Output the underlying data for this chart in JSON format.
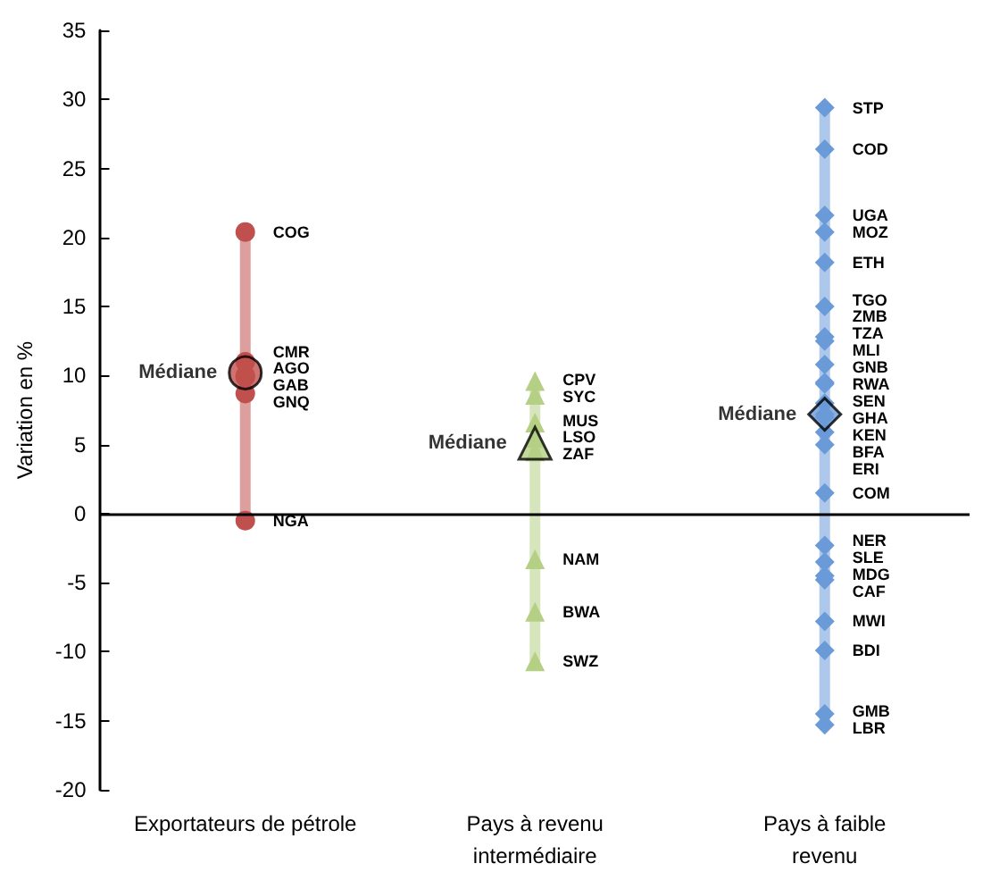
{
  "chart_data": {
    "type": "line",
    "ylabel": "Variation en %",
    "categories": [
      "Exportateurs de pétrole",
      "Pays à revenu\nintermédiaire",
      "Pays à faible\nrevenu"
    ],
    "ylim": [
      -20,
      35
    ],
    "yticks": [
      -20,
      -15,
      -10,
      -5,
      0,
      5,
      10,
      15,
      20,
      25,
      30,
      35
    ],
    "grid": false,
    "legend": false,
    "ref_lines": [
      {
        "axis": "y",
        "value": 0,
        "color": "#000000"
      }
    ],
    "series": [
      {
        "color": "#c0504d",
        "marker": "circle",
        "x": [
          "Exportateurs de pétrole",
          "Exportateurs de pétrole",
          "Exportateurs de pétrole",
          "Exportateurs de pétrole",
          "Exportateurs de pétrole",
          "Exportateurs de pétrole"
        ],
        "values": [
          20.4,
          11.0,
          10.0,
          9.9,
          8.7,
          -0.5
        ],
        "value_labels": [
          "COG",
          "CMR",
          "AGO",
          "GAB",
          "GNQ",
          "NGA"
        ]
      },
      {
        "color": "#b5cf85",
        "marker": "triangle",
        "x": [
          "Pays à revenu\nintermédiaire",
          "Pays à revenu\nintermédiaire",
          "Pays à revenu\nintermédiaire",
          "Pays à revenu\nintermédiaire",
          "Pays à revenu\nintermédiaire",
          "Pays à revenu\nintermédiaire",
          "Pays à revenu\nintermédiaire",
          "Pays à revenu\nintermédiaire"
        ],
        "values": [
          9.6,
          8.6,
          6.6,
          5.5,
          4.5,
          -3.3,
          -7.1,
          -10.7
        ],
        "value_labels": [
          "CPV",
          "SYC",
          "MUS",
          "LSO",
          "ZAF",
          "NAM",
          "BWA",
          "SWZ"
        ]
      },
      {
        "color": "#6a9bd8",
        "marker": "diamond",
        "x": [
          "Pays à faible\nrevenu",
          "Pays à faible\nrevenu",
          "Pays à faible\nrevenu",
          "Pays à faible\nrevenu",
          "Pays à faible\nrevenu",
          "Pays à faible\nrevenu",
          "Pays à faible\nrevenu",
          "Pays à faible\nrevenu",
          "Pays à faible\nrevenu",
          "Pays à faible\nrevenu",
          "Pays à faible\nrevenu",
          "Pays à faible\nrevenu",
          "Pays à faible\nrevenu",
          "Pays à faible\nrevenu",
          "Pays à faible\nrevenu",
          "Pays à faible\nrevenu",
          "Pays à faible\nrevenu",
          "Pays à faible\nrevenu",
          "Pays à faible\nrevenu",
          "Pays à faible\nrevenu",
          "Pays à faible\nrevenu",
          "Pays à faible\nrevenu",
          "Pays à faible\nrevenu",
          "Pays à faible\nrevenu",
          "Pays à faible\nrevenu"
        ],
        "values": [
          29.4,
          26.4,
          21.6,
          20.4,
          18.2,
          15.0,
          12.8,
          12.5,
          10.8,
          9.5,
          9.4,
          8.0,
          7.2,
          7.0,
          5.9,
          5.0,
          1.5,
          -2.3,
          -3.5,
          -4.5,
          -4.8,
          -7.8,
          -9.9,
          -14.5,
          -15.3
        ],
        "value_labels": [
          "STP",
          "COD",
          "UGA",
          "MOZ",
          "ETH",
          "TGO",
          "ZMB",
          "TZA",
          "MLI",
          "GNB",
          "RWA",
          "SEN",
          "GHA",
          "KEN",
          "BFA",
          "ERI",
          "COM",
          "NER",
          "SLE",
          "MDG",
          "CAF",
          "MWI",
          "BDI",
          "GMB",
          "LBR"
        ]
      },
      {
        "type": "scatter",
        "name": "Médiane",
        "color": "#c0504d",
        "marker": "circle",
        "x": [
          "Exportateurs de pétrole"
        ],
        "values": [
          10.2
        ]
      },
      {
        "type": "scatter",
        "name": "Médiane",
        "color": "#b5cf85",
        "marker": "triangle",
        "x": [
          "Pays à revenu\nintermédiaire"
        ],
        "values": [
          5.1
        ]
      },
      {
        "type": "scatter",
        "name": "Médiane",
        "color": "#6a9bd8",
        "marker": "diamond",
        "x": [
          "Pays à faible\nrevenu"
        ],
        "values": [
          7.2
        ]
      }
    ]
  }
}
